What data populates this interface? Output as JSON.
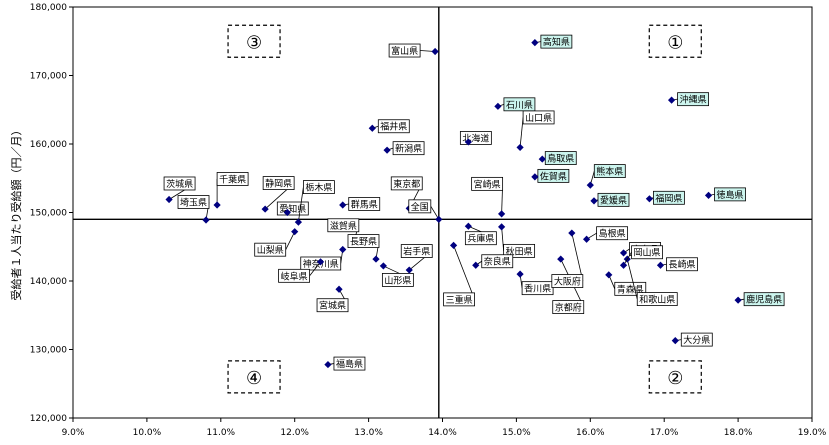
{
  "chart_data": {
    "type": "scatter",
    "xlabel": "",
    "ylabel": "受給者１人当たり受給額（円／月）",
    "xlim": [
      9.0,
      19.0
    ],
    "ylim": [
      120000,
      180000
    ],
    "x_ticks": [
      "9.0%",
      "10.0%",
      "11.0%",
      "12.0%",
      "13.0%",
      "14.0%",
      "15.0%",
      "16.0%",
      "17.0%",
      "18.0%",
      "19.0%"
    ],
    "y_ticks": [
      "120,000",
      "130,000",
      "140,000",
      "150,000",
      "160,000",
      "170,000",
      "180,000"
    ],
    "reference": {
      "x": 13.95,
      "y": 149000
    },
    "quadrants": [
      "①",
      "②",
      "③",
      "④"
    ],
    "colors": {
      "marker": "#000080",
      "highlight": "#ccf5ee",
      "label_bg": "#ffffff"
    },
    "points": [
      {
        "name": "茨城県",
        "x": 10.3,
        "y": 151900,
        "hl": false
      },
      {
        "name": "埼玉県",
        "x": 10.8,
        "y": 148900,
        "hl": false
      },
      {
        "name": "千葉県",
        "x": 10.95,
        "y": 151100,
        "hl": false
      },
      {
        "name": "静岡県",
        "x": 11.6,
        "y": 150500,
        "hl": false
      },
      {
        "name": "愛知県",
        "x": 11.9,
        "y": 150000,
        "hl": false
      },
      {
        "name": "栃木県",
        "x": 12.05,
        "y": 148600,
        "hl": false
      },
      {
        "name": "山梨県",
        "x": 12.0,
        "y": 147200,
        "hl": false
      },
      {
        "name": "群馬県",
        "x": 12.65,
        "y": 151100,
        "hl": false
      },
      {
        "name": "東京都",
        "x": 13.55,
        "y": 150600,
        "hl": false
      },
      {
        "name": "福井県",
        "x": 13.05,
        "y": 162300,
        "hl": false
      },
      {
        "name": "新潟県",
        "x": 13.25,
        "y": 159100,
        "hl": false
      },
      {
        "name": "富山県",
        "x": 13.9,
        "y": 173500,
        "hl": false
      },
      {
        "name": "滋賀県",
        "x": 12.8,
        "y": 145800,
        "hl": false
      },
      {
        "name": "長野県",
        "x": 13.1,
        "y": 143200,
        "hl": false
      },
      {
        "name": "神奈川県",
        "x": 12.65,
        "y": 144600,
        "hl": false
      },
      {
        "name": "岐阜県",
        "x": 12.35,
        "y": 142800,
        "hl": false
      },
      {
        "name": "山形県",
        "x": 13.2,
        "y": 142200,
        "hl": false
      },
      {
        "name": "岩手県",
        "x": 13.55,
        "y": 141600,
        "hl": false
      },
      {
        "name": "宮城県",
        "x": 12.6,
        "y": 138800,
        "hl": false
      },
      {
        "name": "福島県",
        "x": 12.45,
        "y": 127800,
        "hl": false
      },
      {
        "name": "全国",
        "x": 13.95,
        "y": 149000,
        "hl": false
      },
      {
        "name": "高知県",
        "x": 15.25,
        "y": 174800,
        "hl": true
      },
      {
        "name": "石川県",
        "x": 14.75,
        "y": 165500,
        "hl": true
      },
      {
        "name": "沖縄県",
        "x": 17.1,
        "y": 166400,
        "hl": true
      },
      {
        "name": "北海道",
        "x": 14.35,
        "y": 160300,
        "hl": false
      },
      {
        "name": "山口県",
        "x": 15.05,
        "y": 159500,
        "hl": false
      },
      {
        "name": "鳥取県",
        "x": 15.35,
        "y": 157800,
        "hl": true
      },
      {
        "name": "佐賀県",
        "x": 15.25,
        "y": 155200,
        "hl": true
      },
      {
        "name": "熊本県",
        "x": 16.0,
        "y": 154000,
        "hl": true
      },
      {
        "name": "愛媛県",
        "x": 16.05,
        "y": 151700,
        "hl": true
      },
      {
        "name": "福岡県",
        "x": 16.8,
        "y": 152000,
        "hl": true
      },
      {
        "name": "徳島県",
        "x": 17.6,
        "y": 152500,
        "hl": true
      },
      {
        "name": "宮崎県",
        "x": 14.8,
        "y": 149800,
        "hl": false
      },
      {
        "name": "兵庫県",
        "x": 14.35,
        "y": 148000,
        "hl": false
      },
      {
        "name": "三重県",
        "x": 14.15,
        "y": 145200,
        "hl": false
      },
      {
        "name": "秋田県",
        "x": 14.8,
        "y": 147900,
        "hl": false
      },
      {
        "name": "奈良県",
        "x": 14.45,
        "y": 142300,
        "hl": false
      },
      {
        "name": "香川県",
        "x": 15.05,
        "y": 141000,
        "hl": false
      },
      {
        "name": "京都府",
        "x": 15.6,
        "y": 143200,
        "hl": false
      },
      {
        "name": "島根県",
        "x": 15.95,
        "y": 146100,
        "hl": false
      },
      {
        "name": "大阪府",
        "x": 15.75,
        "y": 147000,
        "hl": false
      },
      {
        "name": "青森県",
        "x": 16.25,
        "y": 140900,
        "hl": false
      },
      {
        "name": "広島県",
        "x": 16.45,
        "y": 144100,
        "hl": false
      },
      {
        "name": "和歌山県",
        "x": 16.5,
        "y": 143200,
        "hl": false
      },
      {
        "name": "岡山県",
        "x": 16.45,
        "y": 142300,
        "hl": false
      },
      {
        "name": "長崎県",
        "x": 16.95,
        "y": 142300,
        "hl": false
      },
      {
        "name": "鹿児島県",
        "x": 18.0,
        "y": 137200,
        "hl": true
      },
      {
        "name": "大分県",
        "x": 17.15,
        "y": 131300,
        "hl": false
      }
    ]
  }
}
